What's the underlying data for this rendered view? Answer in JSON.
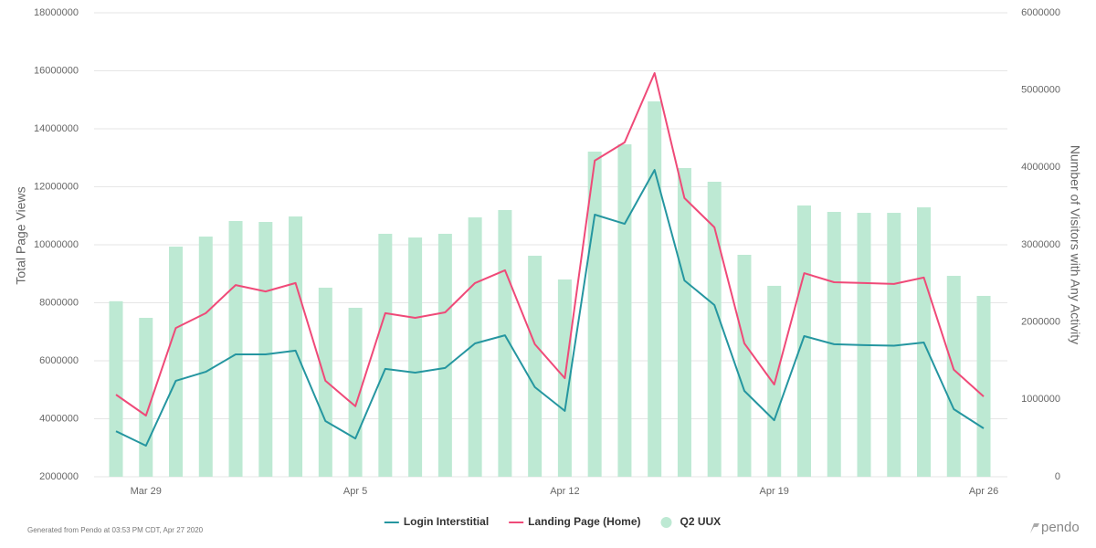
{
  "chart_data": {
    "type": "combo",
    "ylabel": "Total Page Views",
    "y2label": "Number of Visitors with Any Activity",
    "categories": [
      null,
      "Mar 29",
      null,
      null,
      null,
      null,
      null,
      null,
      "Apr 5",
      null,
      null,
      null,
      null,
      null,
      null,
      "Apr 12",
      null,
      null,
      null,
      null,
      null,
      null,
      "Apr 19",
      null,
      null,
      null,
      null,
      null,
      null,
      "Apr 26"
    ],
    "ylim": [
      2000000,
      18000000
    ],
    "yticks": [
      2000000,
      4000000,
      6000000,
      8000000,
      10000000,
      12000000,
      14000000,
      16000000,
      18000000
    ],
    "y2lim": [
      0,
      6000000
    ],
    "y2ticks": [
      0,
      1000000,
      2000000,
      3000000,
      4000000,
      5000000,
      6000000
    ],
    "grid": true,
    "legend": "bottom",
    "series": [
      {
        "name": "Login Interstitial",
        "type": "line",
        "color": "#2596a0",
        "values": [
          3570000,
          3070000,
          5310000,
          5620000,
          6220000,
          6220000,
          6350000,
          3920000,
          3320000,
          5720000,
          5590000,
          5750000,
          6600000,
          6880000,
          5090000,
          4270000,
          11040000,
          10720000,
          12580000,
          8770000,
          7920000,
          4960000,
          3950000,
          6850000,
          6570000,
          6540000,
          6520000,
          6630000,
          4330000,
          3670000
        ]
      },
      {
        "name": "Landing Page (Home)",
        "type": "line",
        "color": "#ef4a78",
        "values": [
          4830000,
          4110000,
          7130000,
          7640000,
          8610000,
          8390000,
          8680000,
          5310000,
          4430000,
          7640000,
          7480000,
          7670000,
          8680000,
          9120000,
          6570000,
          5400000,
          12900000,
          13530000,
          15920000,
          11610000,
          10600000,
          6600000,
          5180000,
          9020000,
          8710000,
          8680000,
          8650000,
          8870000,
          5690000,
          4770000
        ]
      },
      {
        "name": "Q2 UUX",
        "type": "bar",
        "axis": "y2",
        "color": "#bde9d3",
        "values": [
          2270000,
          2055000,
          2976000,
          3106000,
          3307000,
          3295000,
          3366000,
          2445000,
          2185000,
          3142000,
          3094000,
          3142000,
          3354000,
          3449000,
          2858000,
          2551000,
          4205000,
          4299000,
          4854000,
          3992000,
          3815000,
          2870000,
          2469000,
          3508000,
          3425000,
          3413000,
          3413000,
          3484000,
          2598000,
          2339000
        ]
      }
    ]
  },
  "footer": {
    "text": "Generated from Pendo at 03:53 PM CDT, Apr 27 2020",
    "brand": "pendo"
  }
}
